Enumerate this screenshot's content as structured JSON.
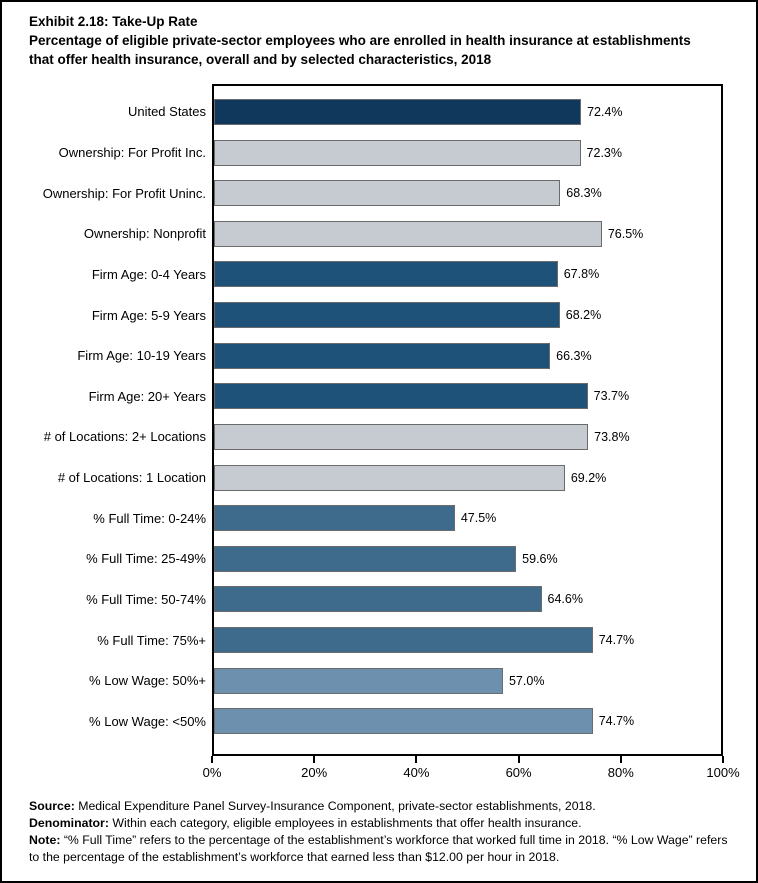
{
  "title": "Exhibit 2.18: Take-Up Rate",
  "subtitle": "Percentage of eligible private-sector employees who are enrolled in health insurance at establishments that offer health insurance, overall and by selected characteristics, 2018",
  "chart_data": {
    "type": "bar",
    "orientation": "horizontal",
    "xlabel": "",
    "ylabel": "",
    "xlim": [
      0,
      100
    ],
    "x_ticks": [
      "0%",
      "20%",
      "40%",
      "60%",
      "80%",
      "100%"
    ],
    "x_tick_values": [
      0,
      20,
      40,
      60,
      80,
      100
    ],
    "grid": false,
    "legend": false,
    "categories": [
      "United States",
      "Ownership: For Profit Inc.",
      "Ownership: For Profit Uninc.",
      "Ownership: Nonprofit",
      "Firm Age: 0-4 Years",
      "Firm Age: 5-9 Years",
      "Firm Age: 10-19 Years",
      "Firm Age: 20+ Years",
      "# of Locations: 2+ Locations",
      "# of Locations: 1 Location",
      "% Full Time: 0-24%",
      "% Full Time: 25-49%",
      "% Full Time: 50-74%",
      "% Full Time: 75%+",
      "% Low Wage: 50%+",
      "% Low Wage: <50%"
    ],
    "values": [
      72.4,
      72.3,
      68.3,
      76.5,
      67.8,
      68.2,
      66.3,
      73.7,
      73.8,
      69.2,
      47.5,
      59.6,
      64.6,
      74.7,
      57.0,
      74.7
    ],
    "bars": [
      {
        "label": "United States",
        "value": 72.4,
        "display": "72.4%",
        "group": "us"
      },
      {
        "label": "Ownership: For Profit Inc.",
        "value": 72.3,
        "display": "72.3%",
        "group": "gray"
      },
      {
        "label": "Ownership: For Profit Uninc.",
        "value": 68.3,
        "display": "68.3%",
        "group": "gray"
      },
      {
        "label": "Ownership: Nonprofit",
        "value": 76.5,
        "display": "76.5%",
        "group": "gray"
      },
      {
        "label": "Firm Age: 0-4 Years",
        "value": 67.8,
        "display": "67.8%",
        "group": "firm_age"
      },
      {
        "label": "Firm Age: 5-9 Years",
        "value": 68.2,
        "display": "68.2%",
        "group": "firm_age"
      },
      {
        "label": "Firm Age: 10-19 Years",
        "value": 66.3,
        "display": "66.3%",
        "group": "firm_age"
      },
      {
        "label": "Firm Age: 20+ Years",
        "value": 73.7,
        "display": "73.7%",
        "group": "firm_age"
      },
      {
        "label": "# of Locations: 2+ Locations",
        "value": 73.8,
        "display": "73.8%",
        "group": "gray"
      },
      {
        "label": "# of Locations: 1 Location",
        "value": 69.2,
        "display": "69.2%",
        "group": "gray"
      },
      {
        "label": "% Full Time: 0-24%",
        "value": 47.5,
        "display": "47.5%",
        "group": "full_time"
      },
      {
        "label": "% Full Time: 25-49%",
        "value": 59.6,
        "display": "59.6%",
        "group": "full_time"
      },
      {
        "label": "% Full Time: 50-74%",
        "value": 64.6,
        "display": "64.6%",
        "group": "full_time"
      },
      {
        "label": "% Full Time: 75%+",
        "value": 74.7,
        "display": "74.7%",
        "group": "full_time"
      },
      {
        "label": "% Low Wage: 50%+",
        "value": 57.0,
        "display": "57.0%",
        "group": "low_wage"
      },
      {
        "label": "% Low Wage: <50%",
        "value": 74.7,
        "display": "74.7%",
        "group": "low_wage"
      }
    ],
    "colors": {
      "us": "#0F385C",
      "gray": "#C5CBD1",
      "firm_age": "#1F5279",
      "full_time": "#3E6A8C",
      "low_wage": "#6D90AE"
    },
    "bar_border_color": "#6B6B6B"
  },
  "footer": {
    "source_label": "Source:",
    "source_text": " Medical Expenditure Panel Survey-Insurance Component, private-sector establishments, 2018.",
    "denominator_label": "Denominator:",
    "denominator_text": " Within each category, eligible employees in establishments that offer health insurance.",
    "note_label": "Note:",
    "note_text": " “% Full Time” refers to the percentage of the establishment’s workforce that worked full time in 2018. “% Low Wage” refers to the percentage of the establishment’s workforce that earned less than $12.00 per hour in 2018."
  }
}
